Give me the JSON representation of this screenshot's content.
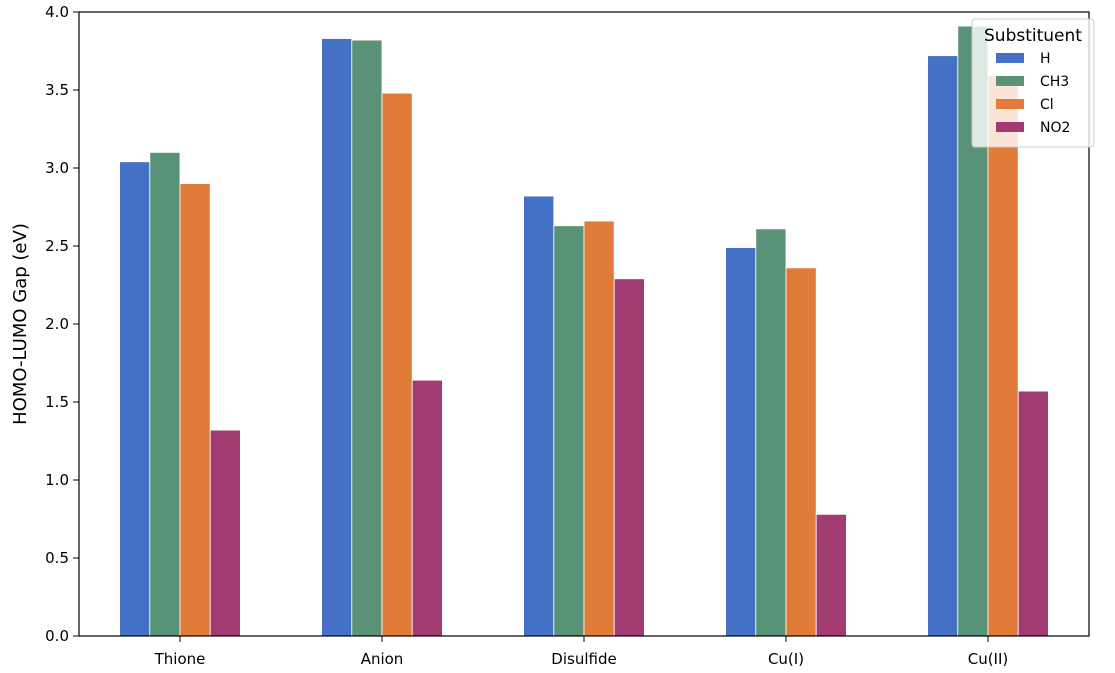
{
  "chart_data": {
    "type": "bar",
    "title": "",
    "xlabel": "",
    "ylabel": "HOMO-LUMO Gap (eV)",
    "ylim": [
      0,
      4.0
    ],
    "yticks": [
      "0.0",
      "0.5",
      "1.0",
      "1.5",
      "2.0",
      "2.5",
      "3.0",
      "3.5",
      "4.0"
    ],
    "categories": [
      "Thione",
      "Anion",
      "Disulfide",
      "Cu(I)",
      "Cu(II)"
    ],
    "series": [
      {
        "name": "H",
        "color": "#4470c6",
        "values": [
          3.04,
          3.83,
          2.82,
          2.49,
          3.72
        ]
      },
      {
        "name": "CH3",
        "color": "#5a9278",
        "values": [
          3.1,
          3.82,
          2.63,
          2.61,
          3.91
        ]
      },
      {
        "name": "Cl",
        "color": "#e07b39",
        "values": [
          2.9,
          3.48,
          2.66,
          2.36,
          3.59
        ]
      },
      {
        "name": "NO2",
        "color": "#a23b72",
        "values": [
          1.32,
          1.64,
          2.29,
          0.78,
          1.57
        ]
      }
    ],
    "legend": {
      "title": "Substituent",
      "placement": "top-right"
    },
    "grid": false
  }
}
